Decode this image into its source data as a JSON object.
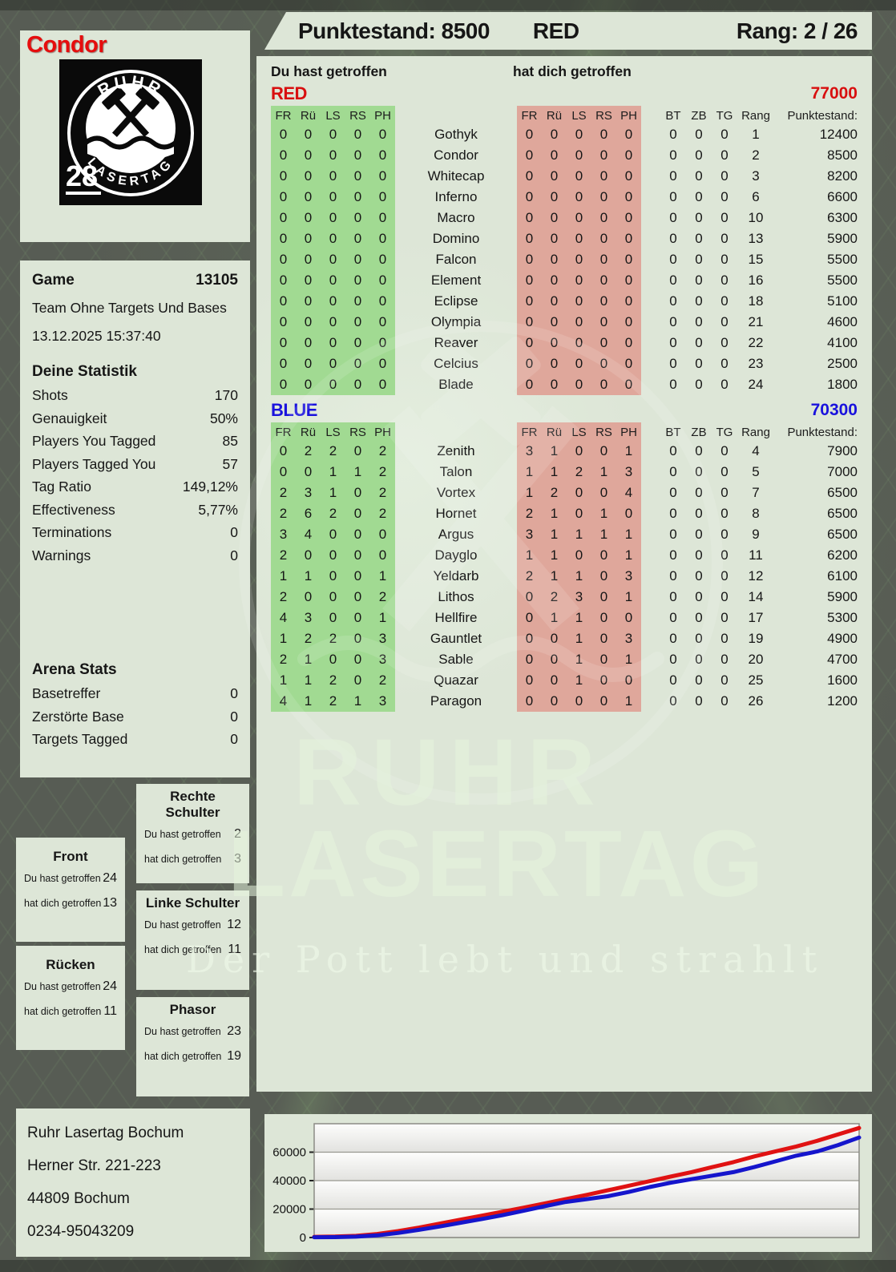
{
  "page": {
    "player": "Condor",
    "score_label": "Punktestand: 8500",
    "team": "RED",
    "rank_label": "Rang: 2 / 26"
  },
  "logo": {
    "top_text": "RUHR",
    "bottom_text": "LASERTAG",
    "badge_number": "28"
  },
  "game_panel": {
    "game_label": "Game",
    "game_number": "13105",
    "mode": "Team Ohne Targets Und Bases",
    "datetime": "13.12.2025 15:37:40",
    "stats_title": "Deine Statistik",
    "stats": [
      {
        "label": "Shots",
        "value": "170"
      },
      {
        "label": "Genauigkeit",
        "value": "50%"
      },
      {
        "label": "Players You Tagged",
        "value": "85"
      },
      {
        "label": "Players Tagged You",
        "value": "57"
      },
      {
        "label": "Tag Ratio",
        "value": "149,12%"
      },
      {
        "label": "Effectiveness",
        "value": "5,77%"
      },
      {
        "label": "Terminations",
        "value": "0"
      },
      {
        "label": "Warnings",
        "value": "0"
      }
    ],
    "arena_title": "Arena Stats",
    "arena_stats": [
      {
        "label": "Basetreffer",
        "value": "0"
      },
      {
        "label": "Zerstörte Base",
        "value": "0"
      },
      {
        "label": "Targets Tagged",
        "value": "0"
      }
    ]
  },
  "scoreboard": {
    "you_hit_label": "Du hast getroffen",
    "hit_you_label": "hat dich getroffen",
    "columns_left": [
      "FR",
      "Rü",
      "LS",
      "RS",
      "PH"
    ],
    "columns_right": [
      "FR",
      "Rü",
      "LS",
      "RS",
      "PH"
    ],
    "columns_extra": [
      "BT",
      "ZB",
      "TG",
      "Rang",
      "Punktestand:"
    ],
    "teams": [
      {
        "name": "RED",
        "color": "#d80f0f",
        "total": "77000",
        "rows": [
          {
            "you": [
              "0",
              "0",
              "0",
              "0",
              "0"
            ],
            "player": "Gothyk",
            "them": [
              "0",
              "0",
              "0",
              "0",
              "0"
            ],
            "bt": "0",
            "zb": "0",
            "tg": "0",
            "rang": "1",
            "punkte": "12400"
          },
          {
            "you": [
              "0",
              "0",
              "0",
              "0",
              "0"
            ],
            "player": "Condor",
            "them": [
              "0",
              "0",
              "0",
              "0",
              "0"
            ],
            "bt": "0",
            "zb": "0",
            "tg": "0",
            "rang": "2",
            "punkte": "8500"
          },
          {
            "you": [
              "0",
              "0",
              "0",
              "0",
              "0"
            ],
            "player": "Whitecap",
            "them": [
              "0",
              "0",
              "0",
              "0",
              "0"
            ],
            "bt": "0",
            "zb": "0",
            "tg": "0",
            "rang": "3",
            "punkte": "8200"
          },
          {
            "you": [
              "0",
              "0",
              "0",
              "0",
              "0"
            ],
            "player": "Inferno",
            "them": [
              "0",
              "0",
              "0",
              "0",
              "0"
            ],
            "bt": "0",
            "zb": "0",
            "tg": "0",
            "rang": "6",
            "punkte": "6600"
          },
          {
            "you": [
              "0",
              "0",
              "0",
              "0",
              "0"
            ],
            "player": "Macro",
            "them": [
              "0",
              "0",
              "0",
              "0",
              "0"
            ],
            "bt": "0",
            "zb": "0",
            "tg": "0",
            "rang": "10",
            "punkte": "6300"
          },
          {
            "you": [
              "0",
              "0",
              "0",
              "0",
              "0"
            ],
            "player": "Domino",
            "them": [
              "0",
              "0",
              "0",
              "0",
              "0"
            ],
            "bt": "0",
            "zb": "0",
            "tg": "0",
            "rang": "13",
            "punkte": "5900"
          },
          {
            "you": [
              "0",
              "0",
              "0",
              "0",
              "0"
            ],
            "player": "Falcon",
            "them": [
              "0",
              "0",
              "0",
              "0",
              "0"
            ],
            "bt": "0",
            "zb": "0",
            "tg": "0",
            "rang": "15",
            "punkte": "5500"
          },
          {
            "you": [
              "0",
              "0",
              "0",
              "0",
              "0"
            ],
            "player": "Element",
            "them": [
              "0",
              "0",
              "0",
              "0",
              "0"
            ],
            "bt": "0",
            "zb": "0",
            "tg": "0",
            "rang": "16",
            "punkte": "5500"
          },
          {
            "you": [
              "0",
              "0",
              "0",
              "0",
              "0"
            ],
            "player": "Eclipse",
            "them": [
              "0",
              "0",
              "0",
              "0",
              "0"
            ],
            "bt": "0",
            "zb": "0",
            "tg": "0",
            "rang": "18",
            "punkte": "5100"
          },
          {
            "you": [
              "0",
              "0",
              "0",
              "0",
              "0"
            ],
            "player": "Olympia",
            "them": [
              "0",
              "0",
              "0",
              "0",
              "0"
            ],
            "bt": "0",
            "zb": "0",
            "tg": "0",
            "rang": "21",
            "punkte": "4600"
          },
          {
            "you": [
              "0",
              "0",
              "0",
              "0",
              "0"
            ],
            "player": "Reaver",
            "them": [
              "0",
              "0",
              "0",
              "0",
              "0"
            ],
            "bt": "0",
            "zb": "0",
            "tg": "0",
            "rang": "22",
            "punkte": "4100"
          },
          {
            "you": [
              "0",
              "0",
              "0",
              "0",
              "0"
            ],
            "player": "Celcius",
            "them": [
              "0",
              "0",
              "0",
              "0",
              "0"
            ],
            "bt": "0",
            "zb": "0",
            "tg": "0",
            "rang": "23",
            "punkte": "2500"
          },
          {
            "you": [
              "0",
              "0",
              "0",
              "0",
              "0"
            ],
            "player": "Blade",
            "them": [
              "0",
              "0",
              "0",
              "0",
              "0"
            ],
            "bt": "0",
            "zb": "0",
            "tg": "0",
            "rang": "24",
            "punkte": "1800"
          }
        ]
      },
      {
        "name": "BLUE",
        "color": "#1a12dd",
        "total": "70300",
        "rows": [
          {
            "you": [
              "0",
              "2",
              "2",
              "0",
              "2"
            ],
            "player": "Zenith",
            "them": [
              "3",
              "1",
              "0",
              "0",
              "1"
            ],
            "bt": "0",
            "zb": "0",
            "tg": "0",
            "rang": "4",
            "punkte": "7900"
          },
          {
            "you": [
              "0",
              "0",
              "1",
              "1",
              "2"
            ],
            "player": "Talon",
            "them": [
              "1",
              "1",
              "2",
              "1",
              "3"
            ],
            "bt": "0",
            "zb": "0",
            "tg": "0",
            "rang": "5",
            "punkte": "7000"
          },
          {
            "you": [
              "2",
              "3",
              "1",
              "0",
              "2"
            ],
            "player": "Vortex",
            "them": [
              "1",
              "2",
              "0",
              "0",
              "4"
            ],
            "bt": "0",
            "zb": "0",
            "tg": "0",
            "rang": "7",
            "punkte": "6500"
          },
          {
            "you": [
              "2",
              "6",
              "2",
              "0",
              "2"
            ],
            "player": "Hornet",
            "them": [
              "2",
              "1",
              "0",
              "1",
              "0"
            ],
            "bt": "0",
            "zb": "0",
            "tg": "0",
            "rang": "8",
            "punkte": "6500"
          },
          {
            "you": [
              "3",
              "4",
              "0",
              "0",
              "0"
            ],
            "player": "Argus",
            "them": [
              "3",
              "1",
              "1",
              "1",
              "1"
            ],
            "bt": "0",
            "zb": "0",
            "tg": "0",
            "rang": "9",
            "punkte": "6500"
          },
          {
            "you": [
              "2",
              "0",
              "0",
              "0",
              "0"
            ],
            "player": "Dayglo",
            "them": [
              "1",
              "1",
              "0",
              "0",
              "1"
            ],
            "bt": "0",
            "zb": "0",
            "tg": "0",
            "rang": "11",
            "punkte": "6200"
          },
          {
            "you": [
              "1",
              "1",
              "0",
              "0",
              "1"
            ],
            "player": "Yeldarb",
            "them": [
              "2",
              "1",
              "1",
              "0",
              "3"
            ],
            "bt": "0",
            "zb": "0",
            "tg": "0",
            "rang": "12",
            "punkte": "6100"
          },
          {
            "you": [
              "2",
              "0",
              "0",
              "0",
              "2"
            ],
            "player": "Lithos",
            "them": [
              "0",
              "2",
              "3",
              "0",
              "1"
            ],
            "bt": "0",
            "zb": "0",
            "tg": "0",
            "rang": "14",
            "punkte": "5900"
          },
          {
            "you": [
              "4",
              "3",
              "0",
              "0",
              "1"
            ],
            "player": "Hellfire",
            "them": [
              "0",
              "1",
              "1",
              "0",
              "0"
            ],
            "bt": "0",
            "zb": "0",
            "tg": "0",
            "rang": "17",
            "punkte": "5300"
          },
          {
            "you": [
              "1",
              "2",
              "2",
              "0",
              "3"
            ],
            "player": "Gauntlet",
            "them": [
              "0",
              "0",
              "1",
              "0",
              "3"
            ],
            "bt": "0",
            "zb": "0",
            "tg": "0",
            "rang": "19",
            "punkte": "4900"
          },
          {
            "you": [
              "2",
              "1",
              "0",
              "0",
              "3"
            ],
            "player": "Sable",
            "them": [
              "0",
              "0",
              "1",
              "0",
              "1"
            ],
            "bt": "0",
            "zb": "0",
            "tg": "0",
            "rang": "20",
            "punkte": "4700"
          },
          {
            "you": [
              "1",
              "1",
              "2",
              "0",
              "2"
            ],
            "player": "Quazar",
            "them": [
              "0",
              "0",
              "1",
              "0",
              "0"
            ],
            "bt": "0",
            "zb": "0",
            "tg": "0",
            "rang": "25",
            "punkte": "1600"
          },
          {
            "you": [
              "4",
              "1",
              "2",
              "1",
              "3"
            ],
            "player": "Paragon",
            "them": [
              "0",
              "0",
              "0",
              "0",
              "1"
            ],
            "bt": "0",
            "zb": "0",
            "tg": "0",
            "rang": "26",
            "punkte": "1200"
          }
        ]
      }
    ]
  },
  "hit_zones": [
    {
      "title": "Front",
      "you_label": "Du hast getroffen",
      "you": "24",
      "them_label": "hat dich getroffen",
      "them": "13"
    },
    {
      "title": "Rücken",
      "you_label": "Du hast getroffen",
      "you": "24",
      "them_label": "hat dich getroffen",
      "them": "11"
    },
    {
      "title": "Rechte Schulter",
      "you_label": "Du hast getroffen",
      "you": "2",
      "them_label": "hat dich getroffen",
      "them": "3"
    },
    {
      "title": "Linke Schulter",
      "you_label": "Du hast getroffen",
      "you": "12",
      "them_label": "hat dich getroffen",
      "them": "11"
    },
    {
      "title": "Phasor",
      "you_label": "Du hast getroffen",
      "you": "23",
      "them_label": "hat dich getroffen",
      "them": "19"
    }
  ],
  "watermark": {
    "line1": "RUHR",
    "line2": "LASERTAG",
    "tagline": "Der Pott lebt und strahlt"
  },
  "address": {
    "lines": [
      "Ruhr Lasertag Bochum",
      "Herner Str. 221-223",
      "44809 Bochum",
      "0234-95043209"
    ]
  },
  "chart_data": {
    "type": "line",
    "title": "",
    "xlabel": "",
    "ylabel": "",
    "ylim": [
      0,
      80000
    ],
    "yticks": [
      0,
      20000,
      40000,
      60000
    ],
    "grid": true,
    "legend_position": "none",
    "series": [
      {
        "name": "RED",
        "color": "#e01212",
        "final_value": 77000,
        "values": [
          500,
          700,
          1200,
          2500,
          4500,
          7000,
          9800,
          12600,
          15400,
          18200,
          21000,
          24000,
          27000,
          30000,
          33200,
          36400,
          39600,
          42800,
          46000,
          49500,
          53000,
          57000,
          60500,
          64000,
          68000,
          72500,
          77000
        ]
      },
      {
        "name": "BLUE",
        "color": "#1515cc",
        "final_value": 70300,
        "values": [
          200,
          300,
          600,
          1500,
          3200,
          5400,
          7800,
          10400,
          13000,
          15800,
          18800,
          22000,
          25000,
          27000,
          29000,
          32000,
          35500,
          38500,
          41000,
          43500,
          46000,
          49500,
          53500,
          57500,
          60500,
          65000,
          70300
        ]
      }
    ]
  }
}
